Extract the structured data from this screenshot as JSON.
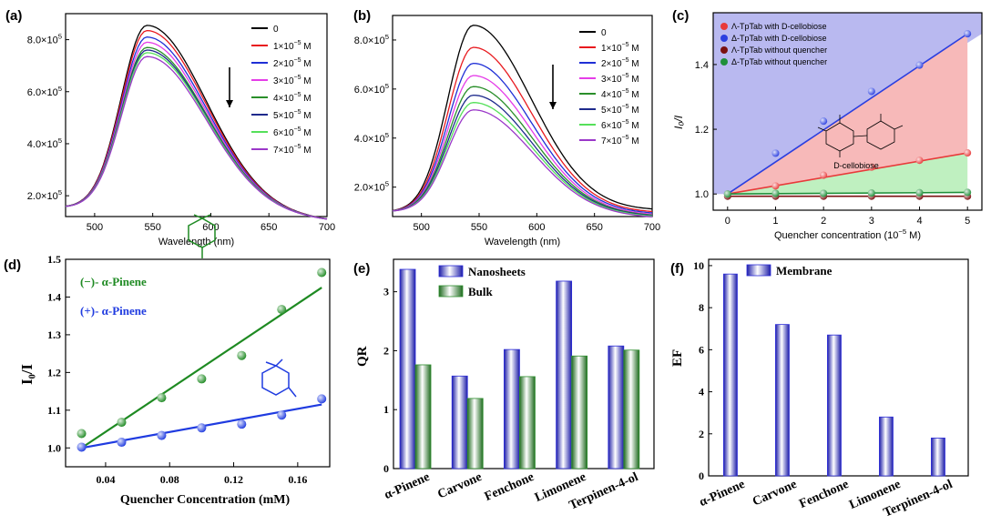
{
  "panels": {
    "a": {
      "label": "(a)"
    },
    "b": {
      "label": "(b)"
    },
    "c": {
      "label": "(c)"
    },
    "d": {
      "label": "(d)"
    },
    "e": {
      "label": "(e)"
    },
    "f": {
      "label": "(f)"
    }
  },
  "chart_data": [
    {
      "id": "a",
      "type": "line",
      "title": "",
      "xlabel": "Wavelength (nm)",
      "ylabel": "",
      "xlim": [
        475,
        700
      ],
      "ylim": [
        1.2,
        9.0
      ],
      "xticks": [
        500,
        550,
        600,
        650,
        700
      ],
      "yticks": [
        2.0,
        4.0,
        6.0,
        8.0
      ],
      "ytick_mult": "×10",
      "ytick_exp": "5",
      "legend_unit": "M",
      "legend_position": "top-right",
      "series": [
        {
          "name": "0",
          "coef": "",
          "exp": "",
          "color": "#000000",
          "peak": 8.55,
          "base": 1.55,
          "tail": 1.05
        },
        {
          "name": "1",
          "coef": "1×10",
          "exp": "−5",
          "color": "#e8191e",
          "peak": 8.35,
          "base": 1.55,
          "tail": 1.05
        },
        {
          "name": "2",
          "coef": "2×10",
          "exp": "−5",
          "color": "#1f2fd6",
          "peak": 8.1,
          "base": 1.55,
          "tail": 1.05
        },
        {
          "name": "3",
          "coef": "3×10",
          "exp": "−5",
          "color": "#e53de8",
          "peak": 7.9,
          "base": 1.55,
          "tail": 1.05
        },
        {
          "name": "4",
          "coef": "4×10",
          "exp": "−5",
          "color": "#2a8f2a",
          "peak": 7.7,
          "base": 1.55,
          "tail": 1.05
        },
        {
          "name": "5",
          "coef": "5×10",
          "exp": "−5",
          "color": "#1e2a8c",
          "peak": 7.6,
          "base": 1.55,
          "tail": 1.05
        },
        {
          "name": "6",
          "coef": "6×10",
          "exp": "−5",
          "color": "#55e05a",
          "peak": 7.5,
          "base": 1.55,
          "tail": 1.05
        },
        {
          "name": "7",
          "coef": "7×10",
          "exp": "−5",
          "color": "#9b38c9",
          "peak": 7.35,
          "base": 1.55,
          "tail": 1.05
        }
      ]
    },
    {
      "id": "b",
      "type": "line",
      "title": "",
      "xlabel": "Wavelength (nm)",
      "ylabel": "",
      "xlim": [
        475,
        700
      ],
      "ylim": [
        0.8,
        9.0
      ],
      "xticks": [
        500,
        550,
        600,
        650,
        700
      ],
      "yticks": [
        2.0,
        4.0,
        6.0,
        8.0
      ],
      "ytick_mult": "×10",
      "ytick_exp": "5",
      "legend_unit": "M",
      "legend_position": "top-right",
      "series": [
        {
          "name": "0",
          "coef": "",
          "exp": "",
          "color": "#000000",
          "peak": 8.6,
          "base": 1.0,
          "tail": 1.05
        },
        {
          "name": "1",
          "coef": "1×10",
          "exp": "−5",
          "color": "#e8191e",
          "peak": 7.7,
          "base": 1.0,
          "tail": 0.95
        },
        {
          "name": "2",
          "coef": "2×10",
          "exp": "−5",
          "color": "#1f2fd6",
          "peak": 7.05,
          "base": 1.0,
          "tail": 0.9
        },
        {
          "name": "3",
          "coef": "3×10",
          "exp": "−5",
          "color": "#e53de8",
          "peak": 6.55,
          "base": 1.0,
          "tail": 0.85
        },
        {
          "name": "4",
          "coef": "4×10",
          "exp": "−5",
          "color": "#2a8f2a",
          "peak": 6.1,
          "base": 1.0,
          "tail": 0.82
        },
        {
          "name": "5",
          "coef": "5×10",
          "exp": "−5",
          "color": "#1e2a8c",
          "peak": 5.75,
          "base": 1.0,
          "tail": 0.8
        },
        {
          "name": "6",
          "coef": "6×10",
          "exp": "−5",
          "color": "#55e05a",
          "peak": 5.45,
          "base": 1.0,
          "tail": 0.78
        },
        {
          "name": "7",
          "coef": "7×10",
          "exp": "−5",
          "color": "#9b38c9",
          "peak": 5.15,
          "base": 1.0,
          "tail": 0.75
        }
      ]
    },
    {
      "id": "c",
      "type": "scatter",
      "title": "",
      "xlabel": "Quencher concentration (10",
      "xlabel_exp": "−5",
      "xlabel_tail": " M)",
      "ylabel": "I₀/I",
      "xlim": [
        -0.3,
        5.3
      ],
      "ylim": [
        0.95,
        1.56
      ],
      "xticks": [
        0,
        1,
        2,
        3,
        4,
        5
      ],
      "yticks": [
        1.0,
        1.2,
        1.4
      ],
      "molecule_label": "D-cellobiose",
      "legend_position": "top-left",
      "series": [
        {
          "name": "Λ-TpTab with D-cellobiose",
          "color": "#e83a3a",
          "x": [
            0,
            1,
            2,
            3,
            4,
            5
          ],
          "y": [
            1.0,
            1.025,
            1.058,
            1.083,
            1.104,
            1.127
          ],
          "fit": [
            1.0,
            1.127
          ]
        },
        {
          "name": "Δ-TpTab with D-cellobiose",
          "color": "#2b3fe0",
          "x": [
            0,
            1,
            2,
            3,
            4,
            5
          ],
          "y": [
            1.0,
            1.126,
            1.225,
            1.317,
            1.398,
            1.495
          ],
          "fit": [
            1.0,
            1.495
          ]
        },
        {
          "name": "Λ-TpTab without quencher",
          "color": "#7a1010",
          "x": [
            0,
            1,
            2,
            3,
            4,
            5
          ],
          "y": [
            0.993,
            0.993,
            0.993,
            0.993,
            0.993,
            0.993
          ],
          "fit": [
            0.993,
            0.993
          ]
        },
        {
          "name": "Δ-TpTab without quencher",
          "color": "#1f8f3a",
          "x": [
            0,
            1,
            2,
            3,
            4,
            5
          ],
          "y": [
            1.0,
            1.002,
            1.002,
            1.003,
            1.004,
            1.005
          ],
          "fit": [
            1.0,
            1.005
          ]
        }
      ]
    },
    {
      "id": "d",
      "type": "scatter",
      "title": "",
      "xlabel": "Quencher Concentration (mM)",
      "ylabel": "I₀/I",
      "xlim": [
        0.015,
        0.18
      ],
      "ylim": [
        0.95,
        1.5
      ],
      "xticks": [
        0.04,
        0.08,
        0.12,
        0.16
      ],
      "yticks": [
        1.0,
        1.1,
        1.2,
        1.3,
        1.4,
        1.5
      ],
      "legend_position": "top-left",
      "series": [
        {
          "name": "(−)- α-Pinene",
          "color": "#1e8a22",
          "x": [
            0.025,
            0.05,
            0.075,
            0.1,
            0.125,
            0.15,
            0.175
          ],
          "y": [
            1.038,
            1.068,
            1.133,
            1.183,
            1.245,
            1.367,
            1.465
          ],
          "fit_x": [
            0.025,
            0.175
          ],
          "fit": [
            1.0,
            1.425
          ]
        },
        {
          "name": "(+)- α-Pinene",
          "color": "#1f3be0",
          "x": [
            0.025,
            0.05,
            0.075,
            0.1,
            0.125,
            0.15,
            0.175
          ],
          "y": [
            1.002,
            1.015,
            1.033,
            1.053,
            1.063,
            1.087,
            1.13
          ],
          "fit_x": [
            0.025,
            0.175
          ],
          "fit": [
            1.0,
            1.115
          ]
        }
      ]
    },
    {
      "id": "e",
      "type": "bar",
      "title": "",
      "xlabel": "",
      "ylabel": "QR",
      "ylim": [
        0,
        3.55
      ],
      "yticks": [
        0,
        1,
        2,
        3
      ],
      "categories": [
        "α-Pinene",
        "Carvone",
        "Fenchone",
        "Limonene",
        "Terpinen-4-ol"
      ],
      "legend_position": "top-left",
      "series": [
        {
          "name": "Nanosheets",
          "color": "#2b2bd8",
          "values": [
            3.38,
            1.57,
            2.02,
            3.18,
            2.08
          ]
        },
        {
          "name": "Bulk",
          "color": "#2f8f2f",
          "values": [
            1.76,
            1.19,
            1.56,
            1.91,
            2.01
          ]
        }
      ]
    },
    {
      "id": "f",
      "type": "bar",
      "title": "",
      "xlabel": "",
      "ylabel": "EF",
      "ylim": [
        0,
        10.3
      ],
      "yticks": [
        0,
        2,
        4,
        6,
        8,
        10
      ],
      "categories": [
        "α-Pinene",
        "Carvone",
        "Fenchone",
        "Limonene",
        "Terpinen-4-ol"
      ],
      "legend_position": "top-left",
      "series": [
        {
          "name": "Membrane",
          "color": "#2b2bd8",
          "values": [
            9.6,
            7.2,
            6.7,
            2.8,
            1.8
          ]
        }
      ]
    }
  ]
}
